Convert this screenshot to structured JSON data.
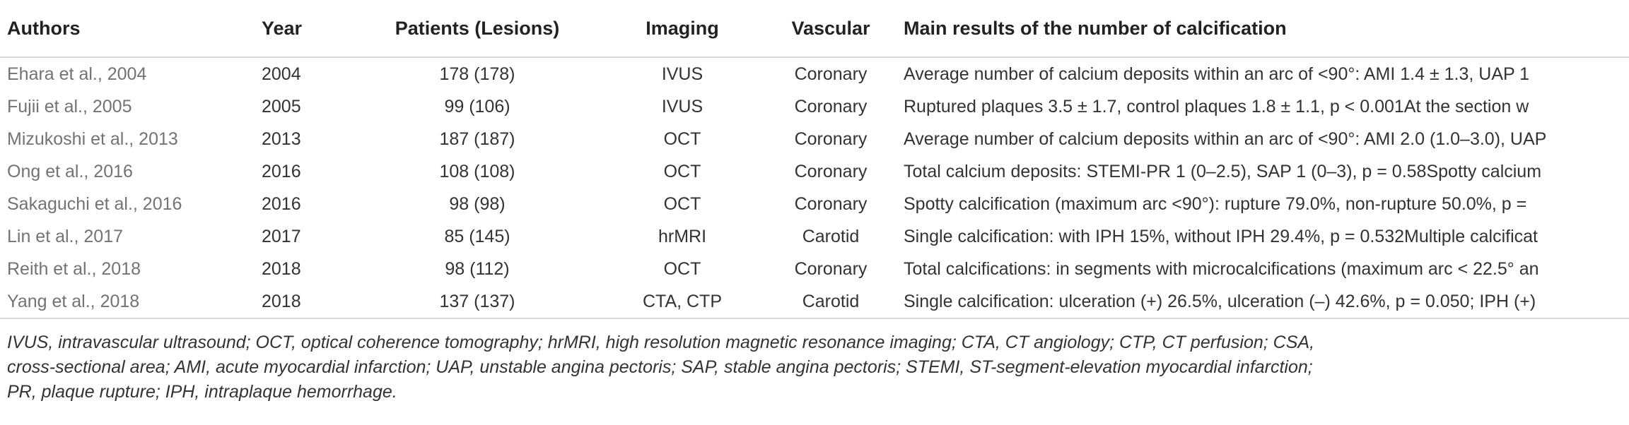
{
  "headers": {
    "authors": "Authors",
    "year": "Year",
    "patients": "Patients (Lesions)",
    "imaging": "Imaging",
    "vascular": "Vascular",
    "results": "Main results of the number of calcification"
  },
  "rows": [
    {
      "authors": "Ehara et al., 2004",
      "year": "2004",
      "patients": "178 (178)",
      "imaging": "IVUS",
      "vascular": "Coronary",
      "results": "Average number of calcium deposits within an arc of <90°: AMI 1.4 ± 1.3, UAP 1"
    },
    {
      "authors": "Fujii et al., 2005",
      "year": "2005",
      "patients": "99 (106)",
      "imaging": "IVUS",
      "vascular": "Coronary",
      "results": "Ruptured plaques 3.5 ± 1.7, control plaques 1.8 ± 1.1, p < 0.001At the section w"
    },
    {
      "authors": "Mizukoshi et al., 2013",
      "year": "2013",
      "patients": "187 (187)",
      "imaging": "OCT",
      "vascular": "Coronary",
      "results": "Average number of calcium deposits within an arc of <90°: AMI 2.0 (1.0–3.0), UAP"
    },
    {
      "authors": "Ong et al., 2016",
      "year": "2016",
      "patients": "108 (108)",
      "imaging": "OCT",
      "vascular": "Coronary",
      "results": "Total calcium deposits: STEMI-PR 1 (0–2.5), SAP 1 (0–3), p = 0.58Spotty calcium"
    },
    {
      "authors": "Sakaguchi et al., 2016",
      "year": "2016",
      "patients": "98 (98)",
      "imaging": "OCT",
      "vascular": "Coronary",
      "results": "Spotty calcification (maximum arc <90°): rupture 79.0%, non-rupture 50.0%, p ="
    },
    {
      "authors": "Lin et al., 2017",
      "year": "2017",
      "patients": "85 (145)",
      "imaging": "hrMRI",
      "vascular": "Carotid",
      "results": "Single calcification: with IPH 15%, without IPH 29.4%, p = 0.532Multiple calcificat"
    },
    {
      "authors": "Reith et al., 2018",
      "year": "2018",
      "patients": "98 (112)",
      "imaging": "OCT",
      "vascular": "Coronary",
      "results": "Total calcifications: in segments with microcalcifications (maximum arc < 22.5° an"
    },
    {
      "authors": "Yang et al., 2018",
      "year": "2018",
      "patients": "137 (137)",
      "imaging": "CTA, CTP",
      "vascular": "Carotid",
      "results": "Single calcification: ulceration (+) 26.5%, ulceration (–) 42.6%, p = 0.050; IPH (+)"
    }
  ],
  "footnote": {
    "line1": "IVUS, intravascular ultrasound; OCT, optical coherence tomography; hrMRI, high resolution magnetic resonance imaging; CTA, CT angiology; CTP, CT perfusion; CSA,",
    "line2": "cross-sectional area; AMI, acute myocardial infarction; UAP, unstable angina pectoris; SAP, stable angina pectoris; STEMI, ST-segment-elevation myocardial infarction;",
    "line3": "PR, plaque rupture; IPH, intraplaque hemorrhage."
  }
}
